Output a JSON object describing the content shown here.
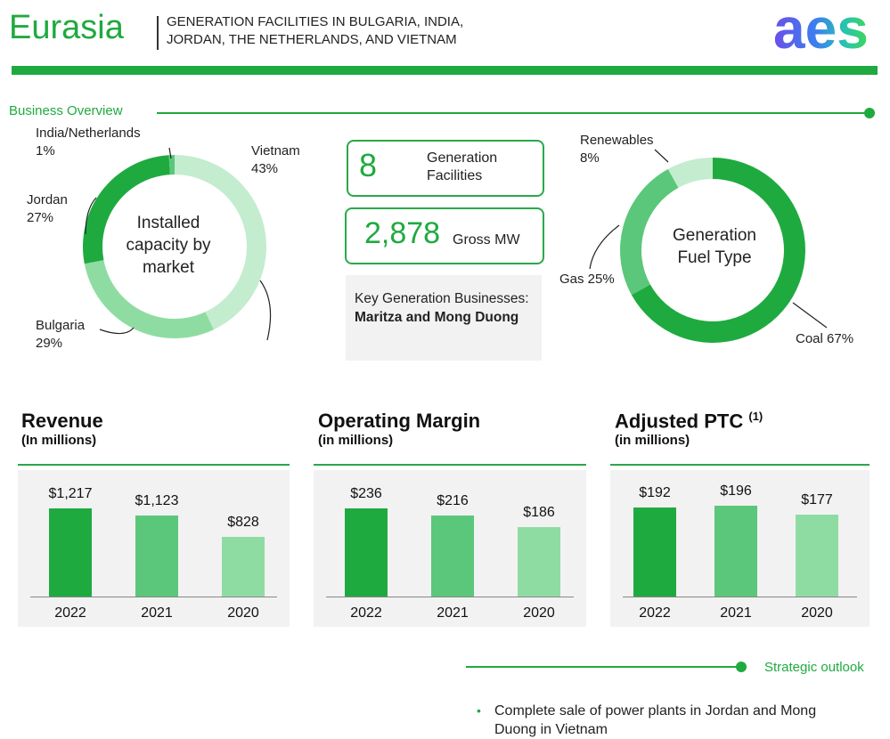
{
  "header": {
    "title": "Eurasia",
    "subtitle_line1": "GENERATION FACILITIES IN BULGARIA, INDIA,",
    "subtitle_line2": "JORDAN, THE NETHERLANDS, AND VIETNAM",
    "logo_text": "aes"
  },
  "colors": {
    "brand_green": "#1faa3f",
    "mid_green": "#5bc77a",
    "light_green": "#8fdca3",
    "pale_green": "#c4ecce"
  },
  "overview": {
    "label": "Business Overview",
    "capacity": {
      "center_line1": "Installed",
      "center_line2": "capacity by",
      "center_line3": "market",
      "segments": [
        {
          "name": "Vietnam",
          "pct": "43%",
          "value": 43
        },
        {
          "name": "Bulgaria",
          "pct": "29%",
          "value": 29
        },
        {
          "name": "Jordan",
          "pct": "27%",
          "value": 27
        },
        {
          "name": "India/Netherlands",
          "pct": "1%",
          "value": 1
        }
      ]
    },
    "facilities": {
      "count": "8",
      "label_line1": "Generation",
      "label_line2": "Facilities"
    },
    "gross": {
      "value": "2,878",
      "label": "Gross MW"
    },
    "key_businesses": {
      "prefix": "Key Generation Businesses: ",
      "names": "Maritza and Mong Duong"
    },
    "fuel": {
      "center_line1": "Generation",
      "center_line2": "Fuel Type",
      "segments": [
        {
          "name": "Coal 67%",
          "value": 67
        },
        {
          "name": "Gas 25%",
          "value": 25
        },
        {
          "name": "Renewables",
          "pct": "8%",
          "value": 8
        }
      ]
    }
  },
  "chart_data": [
    {
      "type": "bar",
      "title": "Revenue",
      "subtitle": "(In millions)",
      "categories": [
        "2022",
        "2021",
        "2020"
      ],
      "values": [
        1217,
        1123,
        828
      ],
      "labels": [
        "$1,217",
        "$1,123",
        "$828"
      ],
      "ylim": [
        0,
        1600
      ]
    },
    {
      "type": "bar",
      "title": "Operating Margin",
      "subtitle": "(in millions)",
      "categories": [
        "2022",
        "2021",
        "2020"
      ],
      "values": [
        236,
        216,
        186
      ],
      "labels": [
        "$236",
        "$216",
        "$186"
      ],
      "ylim": [
        0,
        310
      ]
    },
    {
      "type": "bar",
      "title": "Adjusted PTC",
      "footnote": "(1)",
      "subtitle": "(in millions)",
      "categories": [
        "2022",
        "2021",
        "2020"
      ],
      "values": [
        192,
        196,
        177
      ],
      "labels": [
        "$192",
        "$196",
        "$177"
      ],
      "ylim": [
        0,
        250
      ]
    }
  ],
  "outlook": {
    "label": "Strategic outlook",
    "bullets": [
      "Complete sale of power plants in Jordan and Mong Duong in Vietnam"
    ]
  }
}
